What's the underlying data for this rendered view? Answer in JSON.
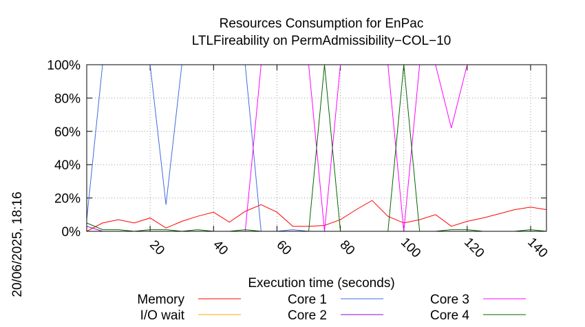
{
  "chart_data": {
    "type": "line",
    "title_line1": "Resources Consumption for EnPac",
    "title_line2": "LTLFireability on PermAdmissibility−COL−10",
    "xlabel": "Execution time (seconds)",
    "timestamp": "20/06/2025, 18:16",
    "xlim": [
      0,
      145
    ],
    "ylim": [
      0,
      100
    ],
    "x_ticks": [
      20,
      40,
      60,
      80,
      100,
      120,
      140
    ],
    "y_ticks": [
      0,
      20,
      40,
      60,
      80,
      100
    ],
    "y_tick_labels": [
      "0%",
      "20%",
      "40%",
      "60%",
      "80%",
      "100%"
    ],
    "grid": true,
    "legend_position": "bottom",
    "series": [
      {
        "name": "Memory",
        "color": "#ff0000",
        "x": [
          0,
          5,
          10,
          15,
          20,
          25,
          30,
          35,
          40,
          45,
          50,
          55,
          60,
          65,
          70,
          75,
          80,
          85,
          90,
          95,
          100,
          105,
          110,
          115,
          120,
          125,
          130,
          135,
          140,
          145
        ],
        "y": [
          0,
          5,
          7,
          5,
          8,
          2,
          6,
          9,
          11.5,
          5.5,
          12,
          16,
          11.5,
          3,
          3,
          3.5,
          7,
          13,
          18.5,
          9,
          5,
          7,
          10,
          3,
          6,
          8,
          10.5,
          13,
          14.5,
          13
        ]
      },
      {
        "name": "I/O wait",
        "color": "#ffa500",
        "x": [
          0,
          145
        ],
        "y": [
          0,
          0
        ]
      },
      {
        "name": "Core 1",
        "color": "#4169e1",
        "x": [
          0,
          5,
          10,
          15,
          20,
          25,
          30,
          35,
          40,
          45,
          50,
          55,
          60,
          65,
          70,
          75,
          80,
          85,
          90,
          95,
          100,
          105,
          110,
          115,
          120,
          125,
          130,
          135,
          140,
          145
        ],
        "y": [
          7,
          100,
          100,
          100,
          100,
          16,
          100,
          100,
          100,
          100,
          100,
          0,
          0,
          1,
          0,
          0,
          0,
          0,
          0,
          0,
          0,
          0,
          0,
          0,
          0,
          0,
          0,
          0,
          0,
          0
        ]
      },
      {
        "name": "Core 2",
        "color": "#9400d3",
        "x": [
          0,
          5,
          145
        ],
        "y": [
          3,
          0,
          0
        ]
      },
      {
        "name": "Core 3",
        "color": "#ff00ff",
        "x": [
          0,
          5,
          10,
          15,
          20,
          25,
          30,
          35,
          40,
          45,
          50,
          55,
          60,
          65,
          70,
          75,
          80,
          85,
          90,
          95,
          100,
          105,
          110,
          115,
          120,
          125,
          130,
          135,
          140,
          145
        ],
        "y": [
          0,
          0,
          0,
          0,
          0,
          0,
          0,
          0,
          0,
          0,
          0,
          100,
          100,
          100,
          100,
          0,
          100,
          100,
          100,
          100,
          0,
          100,
          100,
          62,
          100,
          100,
          100,
          100,
          100,
          100
        ]
      },
      {
        "name": "Core 4",
        "color": "#006400",
        "x": [
          0,
          5,
          10,
          15,
          20,
          25,
          30,
          35,
          40,
          45,
          50,
          55,
          60,
          65,
          70,
          75,
          80,
          85,
          90,
          95,
          100,
          105,
          110,
          115,
          120,
          125,
          130,
          135,
          140,
          145
        ],
        "y": [
          5,
          1,
          1,
          0,
          1,
          1,
          0,
          1,
          0,
          0,
          1,
          0,
          0,
          0,
          0,
          100,
          0,
          0,
          0,
          0,
          100,
          0,
          0,
          1,
          1,
          0,
          0,
          0,
          1,
          0
        ]
      }
    ]
  }
}
